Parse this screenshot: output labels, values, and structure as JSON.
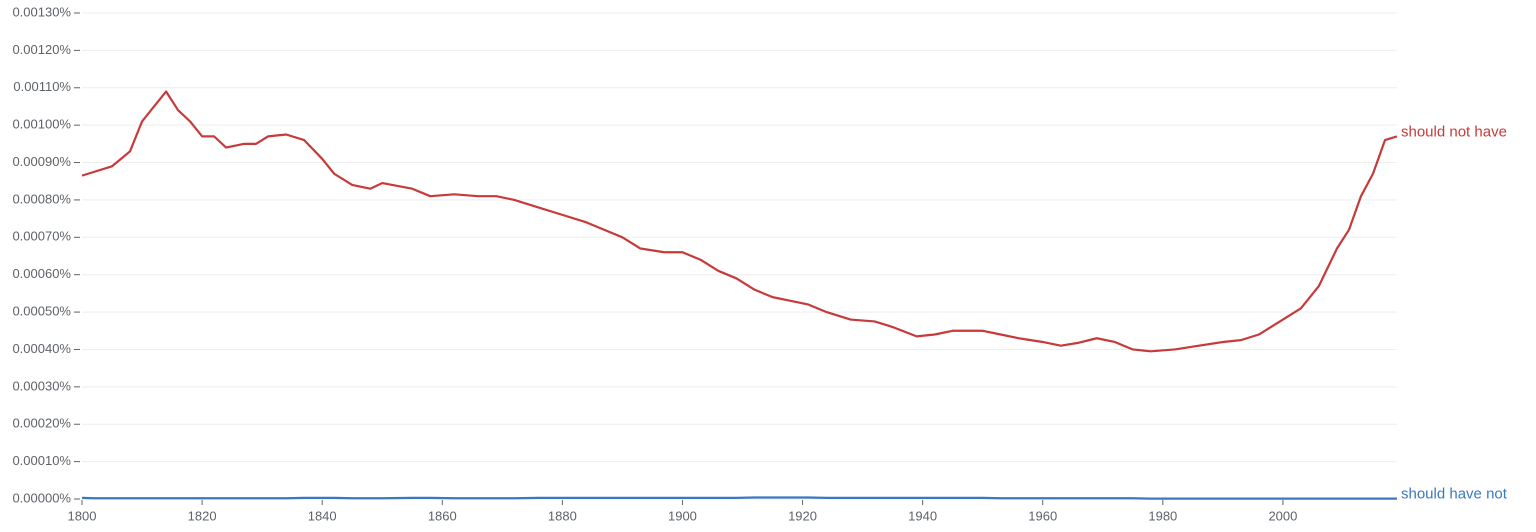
{
  "chart_data": {
    "type": "line",
    "x": [
      1800,
      1802,
      1805,
      1808,
      1810,
      1812,
      1814,
      1816,
      1818,
      1820,
      1822,
      1824,
      1827,
      1829,
      1831,
      1834,
      1837,
      1840,
      1842,
      1845,
      1848,
      1850,
      1855,
      1858,
      1862,
      1866,
      1869,
      1872,
      1876,
      1880,
      1884,
      1887,
      1890,
      1893,
      1897,
      1900,
      1903,
      1906,
      1909,
      1912,
      1915,
      1918,
      1921,
      1924,
      1928,
      1932,
      1935,
      1939,
      1942,
      1945,
      1950,
      1953,
      1956,
      1960,
      1963,
      1966,
      1969,
      1972,
      1975,
      1978,
      1982,
      1986,
      1990,
      1993,
      1996,
      2000,
      2003,
      2006,
      2009,
      2011,
      2013,
      2015,
      2017,
      2019
    ],
    "series": [
      {
        "name": "should not have",
        "color": "#c83a3a",
        "values": [
          0.000865,
          0.000875,
          0.00089,
          0.00093,
          0.00101,
          0.00105,
          0.00109,
          0.00104,
          0.00101,
          0.00097,
          0.00097,
          0.00094,
          0.00095,
          0.00095,
          0.00097,
          0.000975,
          0.00096,
          0.00091,
          0.00087,
          0.00084,
          0.00083,
          0.000845,
          0.00083,
          0.00081,
          0.000815,
          0.00081,
          0.00081,
          0.0008,
          0.00078,
          0.00076,
          0.00074,
          0.00072,
          0.0007,
          0.00067,
          0.00066,
          0.00066,
          0.00064,
          0.00061,
          0.00059,
          0.00056,
          0.00054,
          0.00053,
          0.00052,
          0.0005,
          0.00048,
          0.000475,
          0.00046,
          0.000435,
          0.00044,
          0.00045,
          0.00045,
          0.00044,
          0.00043,
          0.00042,
          0.00041,
          0.000418,
          0.00043,
          0.00042,
          0.0004,
          0.000395,
          0.0004,
          0.00041,
          0.00042,
          0.000425,
          0.00044,
          0.00048,
          0.00051,
          0.00057,
          0.00067,
          0.00072,
          0.00081,
          0.00087,
          0.00096,
          0.00097
        ]
      },
      {
        "name": "should have not",
        "color": "#3b78c3",
        "values": [
          3e-06,
          2e-06,
          2e-06,
          2e-06,
          2e-06,
          2e-06,
          2e-06,
          2e-06,
          2e-06,
          2e-06,
          2e-06,
          2e-06,
          2e-06,
          2e-06,
          2e-06,
          2e-06,
          3e-06,
          3e-06,
          3e-06,
          2e-06,
          2e-06,
          2e-06,
          3e-06,
          3e-06,
          2e-06,
          2e-06,
          2e-06,
          2e-06,
          3e-06,
          3e-06,
          3e-06,
          3e-06,
          3e-06,
          3e-06,
          3e-06,
          3e-06,
          3e-06,
          3e-06,
          3e-06,
          4e-06,
          4e-06,
          4e-06,
          4e-06,
          3e-06,
          3e-06,
          3e-06,
          3e-06,
          3e-06,
          3e-06,
          3e-06,
          3e-06,
          2e-06,
          2e-06,
          2e-06,
          2e-06,
          2e-06,
          2e-06,
          2e-06,
          2e-06,
          1e-06,
          1e-06,
          1e-06,
          1e-06,
          1e-06,
          1e-06,
          1e-06,
          1e-06,
          1e-06,
          1e-06,
          1e-06,
          1e-06,
          1e-06,
          1e-06,
          1e-06
        ]
      }
    ],
    "xlim": [
      1800,
      2019
    ],
    "xticks": [
      1800,
      1820,
      1840,
      1860,
      1880,
      1900,
      1920,
      1940,
      1960,
      1980,
      2000
    ],
    "ylim": [
      0,
      0.0013
    ],
    "yticks": [
      {
        "value": 0,
        "label": "0.00000%"
      },
      {
        "value": 0.0001,
        "label": "0.00010%"
      },
      {
        "value": 0.0002,
        "label": "0.00020%"
      },
      {
        "value": 0.0003,
        "label": "0.00030%"
      },
      {
        "value": 0.0004,
        "label": "0.00040%"
      },
      {
        "value": 0.0005,
        "label": "0.00050%"
      },
      {
        "value": 0.0006,
        "label": "0.00060%"
      },
      {
        "value": 0.0007,
        "label": "0.00070%"
      },
      {
        "value": 0.0008,
        "label": "0.00080%"
      },
      {
        "value": 0.0009,
        "label": "0.00090%"
      },
      {
        "value": 0.001,
        "label": "0.00100%"
      },
      {
        "value": 0.0011,
        "label": "0.00110%"
      },
      {
        "value": 0.0012,
        "label": "0.00120%"
      },
      {
        "value": 0.0013,
        "label": "0.00130%"
      }
    ],
    "grid": true
  }
}
